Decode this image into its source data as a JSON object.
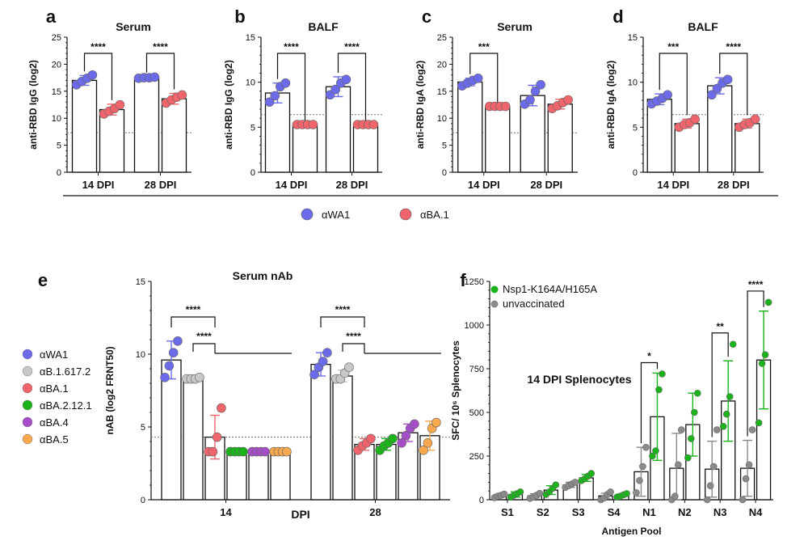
{
  "legend_top": [
    {
      "label": "αWA1",
      "color": "#6b6bea"
    },
    {
      "label": "αBA.1",
      "color": "#f0656b"
    }
  ],
  "chart_data": [
    {
      "panel": "a",
      "type": "bar",
      "title": "Serum",
      "ylabel": "anti-RBD IgG (log2)",
      "ylim": [
        0,
        25
      ],
      "yticks": [
        0,
        5,
        10,
        15,
        20,
        25
      ],
      "limit_of_detection": 7.3,
      "categories": [
        "14 DPI",
        "28 DPI"
      ],
      "series": [
        {
          "name": "αWA1",
          "color": "#6b6bea",
          "values": [
            17.0,
            17.5
          ],
          "err": [
            0.9,
            0.2
          ],
          "points": [
            [
              16.2,
              16.8,
              17.4,
              18.0
            ],
            [
              17.4,
              17.5,
              17.5,
              17.6
            ]
          ]
        },
        {
          "name": "αBA.1",
          "color": "#f0656b",
          "values": [
            11.6,
            13.6
          ],
          "err": [
            1.0,
            1.0
          ],
          "points": [
            [
              10.8,
              11.3,
              11.8,
              12.5
            ],
            [
              12.8,
              13.4,
              13.9,
              14.3
            ]
          ]
        }
      ],
      "significance": [
        {
          "category": "14 DPI",
          "label": "****"
        },
        {
          "category": "28 DPI",
          "label": "****"
        }
      ]
    },
    {
      "panel": "b",
      "type": "bar",
      "title": "BALF",
      "ylabel": "anti-RBD IgG (log2)",
      "ylim": [
        0,
        15
      ],
      "yticks": [
        0,
        5,
        10,
        15
      ],
      "limit_of_detection": 6.4,
      "categories": [
        "14 DPI",
        "28 DPI"
      ],
      "series": [
        {
          "name": "αWA1",
          "color": "#6b6bea",
          "values": [
            8.8,
            9.5
          ],
          "err": [
            1.1,
            1.1
          ],
          "points": [
            [
              7.8,
              8.5,
              9.5,
              9.9
            ],
            [
              8.6,
              9.2,
              9.9,
              10.3
            ]
          ]
        },
        {
          "name": "αBA.1",
          "color": "#f0656b",
          "values": [
            5.3,
            5.3
          ],
          "err": [
            0,
            0
          ],
          "points": [
            [
              5.3,
              5.3,
              5.3,
              5.3
            ],
            [
              5.3,
              5.3,
              5.3,
              5.3
            ]
          ]
        }
      ],
      "significance": [
        {
          "category": "14 DPI",
          "label": "****"
        },
        {
          "category": "28 DPI",
          "label": "****"
        }
      ]
    },
    {
      "panel": "c",
      "type": "bar",
      "title": "Serum",
      "ylabel": "anti-RBD IgA (log2)",
      "ylim": [
        0,
        25
      ],
      "yticks": [
        0,
        5,
        10,
        15,
        20,
        25
      ],
      "limit_of_detection": 7.3,
      "categories": [
        "14 DPI",
        "28 DPI"
      ],
      "series": [
        {
          "name": "αWA1",
          "color": "#6b6bea",
          "values": [
            16.7,
            14.2
          ],
          "err": [
            0.7,
            1.9
          ],
          "points": [
            [
              16.0,
              16.5,
              17.0,
              17.4
            ],
            [
              12.6,
              13.4,
              15.0,
              16.2
            ]
          ]
        },
        {
          "name": "αBA.1",
          "color": "#f0656b",
          "values": [
            12.2,
            12.6
          ],
          "err": [
            0,
            0.9
          ],
          "points": [
            [
              12.2,
              12.2,
              12.2,
              12.2
            ],
            [
              11.8,
              12.3,
              12.9,
              13.4
            ]
          ]
        }
      ],
      "significance": [
        {
          "category": "14 DPI",
          "label": "***"
        }
      ]
    },
    {
      "panel": "d",
      "type": "bar",
      "title": "BALF",
      "ylabel": "anti-RBD IgA (log2)",
      "ylim": [
        0,
        15
      ],
      "yticks": [
        0,
        5,
        10,
        15
      ],
      "limit_of_detection": 6.4,
      "categories": [
        "14 DPI",
        "28 DPI"
      ],
      "series": [
        {
          "name": "αWA1",
          "color": "#6b6bea",
          "values": [
            8.1,
            9.6
          ],
          "err": [
            0.6,
            0.9
          ],
          "points": [
            [
              7.6,
              7.9,
              8.2,
              8.6
            ],
            [
              8.6,
              9.3,
              9.9,
              10.3
            ]
          ]
        },
        {
          "name": "αBA.1",
          "color": "#f0656b",
          "values": [
            5.4,
            5.4
          ],
          "err": [
            0.5,
            0.5
          ],
          "points": [
            [
              5.0,
              5.3,
              5.5,
              5.9
            ],
            [
              5.0,
              5.3,
              5.5,
              5.9
            ]
          ]
        }
      ],
      "significance": [
        {
          "category": "14 DPI",
          "label": "***"
        },
        {
          "category": "28 DPI",
          "label": "****"
        }
      ]
    },
    {
      "panel": "e",
      "type": "bar",
      "title": "Serum nAb",
      "ylabel": "nAB (log2 FRNT50)",
      "xlabel": "DPI",
      "ylim": [
        0,
        15
      ],
      "yticks": [
        0,
        5,
        10,
        15
      ],
      "limit_of_detection": 4.3,
      "categories": [
        "14",
        "28"
      ],
      "series": [
        {
          "name": "αWA1",
          "color": "#6b6bea",
          "values": [
            9.6,
            9.3
          ],
          "err": [
            1.3,
            0.8
          ],
          "points": [
            [
              8.4,
              9.2,
              10.1,
              10.9
            ],
            [
              8.6,
              9.1,
              9.5,
              10.1
            ]
          ]
        },
        {
          "name": "αB.1.617.2",
          "color": "#c8c8c8",
          "values": [
            8.3,
            8.5
          ],
          "err": [
            0.1,
            0.4
          ],
          "points": [
            [
              8.3,
              8.3,
              8.3,
              8.4
            ],
            [
              8.3,
              8.3,
              8.7,
              9.1
            ]
          ]
        },
        {
          "name": "αBA.1",
          "color": "#f0656b",
          "values": [
            4.3,
            3.8
          ],
          "err": [
            1.5,
            0.4
          ],
          "points": [
            [
              3.3,
              3.3,
              4.3,
              6.3
            ],
            [
              3.4,
              3.7,
              3.9,
              4.2
            ]
          ]
        },
        {
          "name": "αBA.2.12.1",
          "color": "#1ab31a",
          "values": [
            3.3,
            3.8
          ],
          "err": [
            0,
            0.4
          ],
          "points": [
            [
              3.3,
              3.3,
              3.3,
              3.3
            ],
            [
              3.4,
              3.7,
              3.9,
              4.2
            ]
          ]
        },
        {
          "name": "αBA.4",
          "color": "#a64ec7",
          "values": [
            3.3,
            4.6
          ],
          "err": [
            0,
            0.6
          ],
          "points": [
            [
              3.3,
              3.3,
              3.3,
              3.3
            ],
            [
              3.9,
              4.4,
              4.9,
              5.2
            ]
          ]
        },
        {
          "name": "αBA.5",
          "color": "#f9a84d",
          "values": [
            3.3,
            4.4
          ],
          "err": [
            0,
            1.0
          ],
          "points": [
            [
              3.3,
              3.3,
              3.3,
              3.3
            ],
            [
              3.4,
              3.9,
              4.9,
              5.3
            ]
          ]
        }
      ],
      "significance_labels": [
        "****",
        "****",
        "****",
        "****"
      ]
    },
    {
      "panel": "f",
      "type": "bar",
      "ylabel": "SFC/ 10⁶ Splenocytes",
      "xlabel": "Antigen Pool",
      "annotation": "14 DPI Splenocytes",
      "ylim": [
        0,
        1250
      ],
      "yticks": [
        0,
        250,
        500,
        750,
        1000,
        1250
      ],
      "categories": [
        "S1",
        "S2",
        "S3",
        "S4",
        "N1",
        "N2",
        "N3",
        "N4"
      ],
      "series": [
        {
          "name": "unvaccinated",
          "color": "#8a8a8a",
          "values": [
            22,
            22,
            85,
            22,
            160,
            180,
            175,
            180
          ],
          "err": [
            10,
            12,
            15,
            15,
            140,
            200,
            160,
            160
          ],
          "points": [
            [
              12,
              20,
              25,
              32
            ],
            [
              8,
              15,
              25,
              36
            ],
            [
              70,
              80,
              90,
              100
            ],
            [
              0,
              10,
              30,
              45
            ],
            [
              40,
              110,
              190,
              300
            ],
            [
              0,
              20,
              200,
              400
            ],
            [
              0,
              80,
              190,
              400
            ],
            [
              0,
              120,
              200,
              400
            ]
          ]
        },
        {
          "name": "Nsp1-K164A/H165A",
          "color": "#1ab31a",
          "values": [
            30,
            55,
            125,
            25,
            475,
            430,
            565,
            800
          ],
          "err": [
            15,
            25,
            20,
            8,
            250,
            180,
            230,
            280
          ],
          "points": [
            [
              15,
              25,
              35,
              45
            ],
            [
              30,
              45,
              65,
              85
            ],
            [
              110,
              120,
              135,
              150
            ],
            [
              15,
              20,
              28,
              35
            ],
            [
              250,
              280,
              630,
              720
            ],
            [
              240,
              350,
              500,
              610
            ],
            [
              420,
              490,
              590,
              890
            ],
            [
              440,
              780,
              830,
              1130
            ]
          ]
        }
      ],
      "significance": [
        {
          "category": "N1",
          "label": "*"
        },
        {
          "category": "N3",
          "label": "**"
        },
        {
          "category": "N4",
          "label": "****"
        }
      ]
    }
  ]
}
